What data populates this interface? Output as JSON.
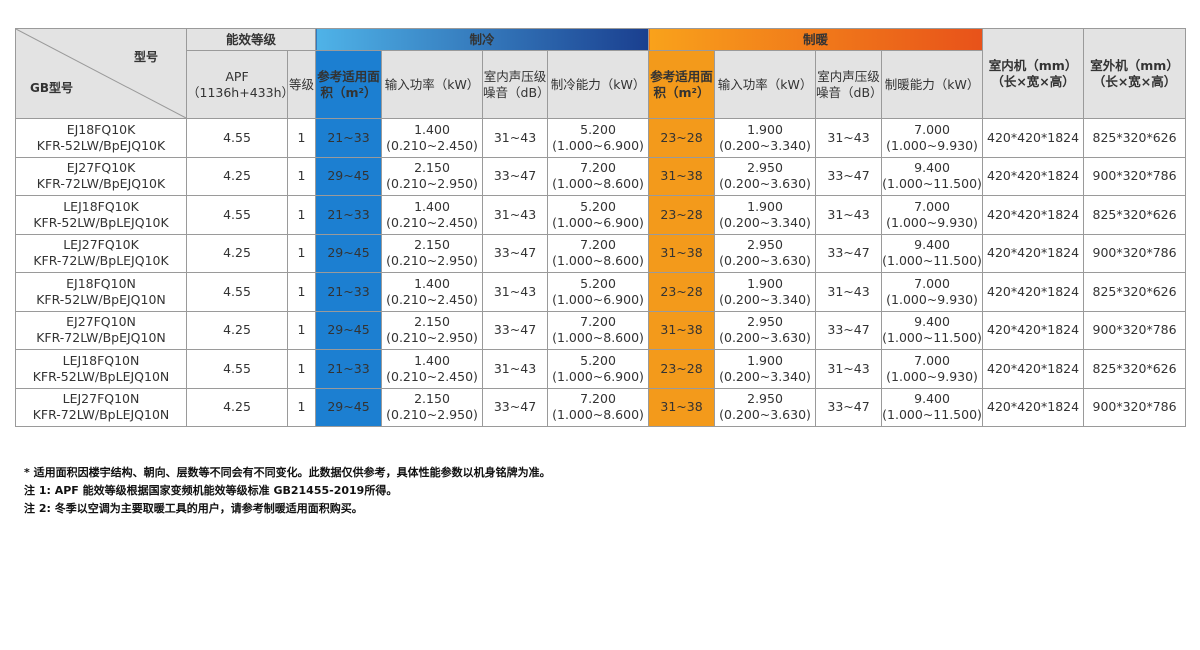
{
  "header": {
    "model_label": "型号",
    "gb_label": "GB型号",
    "energy_group": "能效等级",
    "apf": "APF",
    "apf_sub": "（1136h+433h）",
    "grade": "等级",
    "cooling_group": "制冷",
    "heating_group": "制暖",
    "area_label": "参考适用面积（m²）",
    "input_power": "输入功率（kW）",
    "noise": "室内声压级噪音（dB）",
    "cooling_capacity": "制冷能力（kW）",
    "heating_capacity": "制暖能力（kW）",
    "indoor_unit": "室内机（mm）（长×宽×高）",
    "outdoor_unit": "室外机（mm）（长×宽×高）"
  },
  "colors": {
    "cooling_gradient_start": "#4fb3e8",
    "cooling_gradient_end": "#1a3f8f",
    "cooling_cell": "#1c7fd1",
    "heating_gradient_start": "#f9a21b",
    "heating_gradient_end": "#e8521a",
    "heating_cell": "#f39a1b"
  },
  "rows": [
    {
      "model_a": "EJ18FQ10K",
      "model_b": "KFR-52LW/BpEJQ10K",
      "apf": "4.55",
      "grade": "1",
      "cool_area": "21~33",
      "cool_power": "1.400",
      "cool_power_range": "(0.210~2.450)",
      "cool_noise": "31~43",
      "cool_cap": "5.200",
      "cool_cap_range": "(1.000~6.900)",
      "heat_area": "23~28",
      "heat_power": "1.900",
      "heat_power_range": "(0.200~3.340)",
      "heat_noise": "31~43",
      "heat_cap": "7.000",
      "heat_cap_range": "(1.000~9.930)",
      "indoor": "420*420*1824",
      "outdoor": "825*320*626"
    },
    {
      "model_a": "EJ27FQ10K",
      "model_b": "KFR-72LW/BpEJQ10K",
      "apf": "4.25",
      "grade": "1",
      "cool_area": "29~45",
      "cool_power": "2.150",
      "cool_power_range": "(0.210~2.950)",
      "cool_noise": "33~47",
      "cool_cap": "7.200",
      "cool_cap_range": "(1.000~8.600)",
      "heat_area": "31~38",
      "heat_power": "2.950",
      "heat_power_range": "(0.200~3.630)",
      "heat_noise": "33~47",
      "heat_cap": "9.400",
      "heat_cap_range": "(1.000~11.500)",
      "indoor": "420*420*1824",
      "outdoor": "900*320*786"
    },
    {
      "model_a": "LEJ18FQ10K",
      "model_b": "KFR-52LW/BpLEJQ10K",
      "apf": "4.55",
      "grade": "1",
      "cool_area": "21~33",
      "cool_power": "1.400",
      "cool_power_range": "(0.210~2.450)",
      "cool_noise": "31~43",
      "cool_cap": "5.200",
      "cool_cap_range": "(1.000~6.900)",
      "heat_area": "23~28",
      "heat_power": "1.900",
      "heat_power_range": "(0.200~3.340)",
      "heat_noise": "31~43",
      "heat_cap": "7.000",
      "heat_cap_range": "(1.000~9.930)",
      "indoor": "420*420*1824",
      "outdoor": "825*320*626"
    },
    {
      "model_a": "LEJ27FQ10K",
      "model_b": "KFR-72LW/BpLEJQ10K",
      "apf": "4.25",
      "grade": "1",
      "cool_area": "29~45",
      "cool_power": "2.150",
      "cool_power_range": "(0.210~2.950)",
      "cool_noise": "33~47",
      "cool_cap": "7.200",
      "cool_cap_range": "(1.000~8.600)",
      "heat_area": "31~38",
      "heat_power": "2.950",
      "heat_power_range": "(0.200~3.630)",
      "heat_noise": "33~47",
      "heat_cap": "9.400",
      "heat_cap_range": "(1.000~11.500)",
      "indoor": "420*420*1824",
      "outdoor": "900*320*786"
    },
    {
      "model_a": "EJ18FQ10N",
      "model_b": "KFR-52LW/BpEJQ10N",
      "apf": "4.55",
      "grade": "1",
      "cool_area": "21~33",
      "cool_power": "1.400",
      "cool_power_range": "(0.210~2.450)",
      "cool_noise": "31~43",
      "cool_cap": "5.200",
      "cool_cap_range": "(1.000~6.900)",
      "heat_area": "23~28",
      "heat_power": "1.900",
      "heat_power_range": "(0.200~3.340)",
      "heat_noise": "31~43",
      "heat_cap": "7.000",
      "heat_cap_range": "(1.000~9.930)",
      "indoor": "420*420*1824",
      "outdoor": "825*320*626"
    },
    {
      "model_a": "EJ27FQ10N",
      "model_b": "KFR-72LW/BpEJQ10N",
      "apf": "4.25",
      "grade": "1",
      "cool_area": "29~45",
      "cool_power": "2.150",
      "cool_power_range": "(0.210~2.950)",
      "cool_noise": "33~47",
      "cool_cap": "7.200",
      "cool_cap_range": "(1.000~8.600)",
      "heat_area": "31~38",
      "heat_power": "2.950",
      "heat_power_range": "(0.200~3.630)",
      "heat_noise": "33~47",
      "heat_cap": "9.400",
      "heat_cap_range": "(1.000~11.500)",
      "indoor": "420*420*1824",
      "outdoor": "900*320*786"
    },
    {
      "model_a": "LEJ18FQ10N",
      "model_b": "KFR-52LW/BpLEJQ10N",
      "apf": "4.55",
      "grade": "1",
      "cool_area": "21~33",
      "cool_power": "1.400",
      "cool_power_range": "(0.210~2.450)",
      "cool_noise": "31~43",
      "cool_cap": "5.200",
      "cool_cap_range": "(1.000~6.900)",
      "heat_area": "23~28",
      "heat_power": "1.900",
      "heat_power_range": "(0.200~3.340)",
      "heat_noise": "31~43",
      "heat_cap": "7.000",
      "heat_cap_range": "(1.000~9.930)",
      "indoor": "420*420*1824",
      "outdoor": "825*320*626"
    },
    {
      "model_a": "LEJ27FQ10N",
      "model_b": "KFR-72LW/BpLEJQ10N",
      "apf": "4.25",
      "grade": "1",
      "cool_area": "29~45",
      "cool_power": "2.150",
      "cool_power_range": "(0.210~2.950)",
      "cool_noise": "33~47",
      "cool_cap": "7.200",
      "cool_cap_range": "(1.000~8.600)",
      "heat_area": "31~38",
      "heat_power": "2.950",
      "heat_power_range": "(0.200~3.630)",
      "heat_noise": "33~47",
      "heat_cap": "9.400",
      "heat_cap_range": "(1.000~11.500)",
      "indoor": "420*420*1824",
      "outdoor": "900*320*786"
    }
  ],
  "notes": [
    "* 适用面积因楼宇结构、朝向、层数等不同会有不同变化。此数据仅供参考，具体性能参数以机身铭牌为准。",
    "注 1: APF 能效等级根据国家变频机能效等级标准 GB21455-2019所得。",
    "注 2: 冬季以空调为主要取暖工具的用户，请参考制暖适用面积购买。"
  ]
}
